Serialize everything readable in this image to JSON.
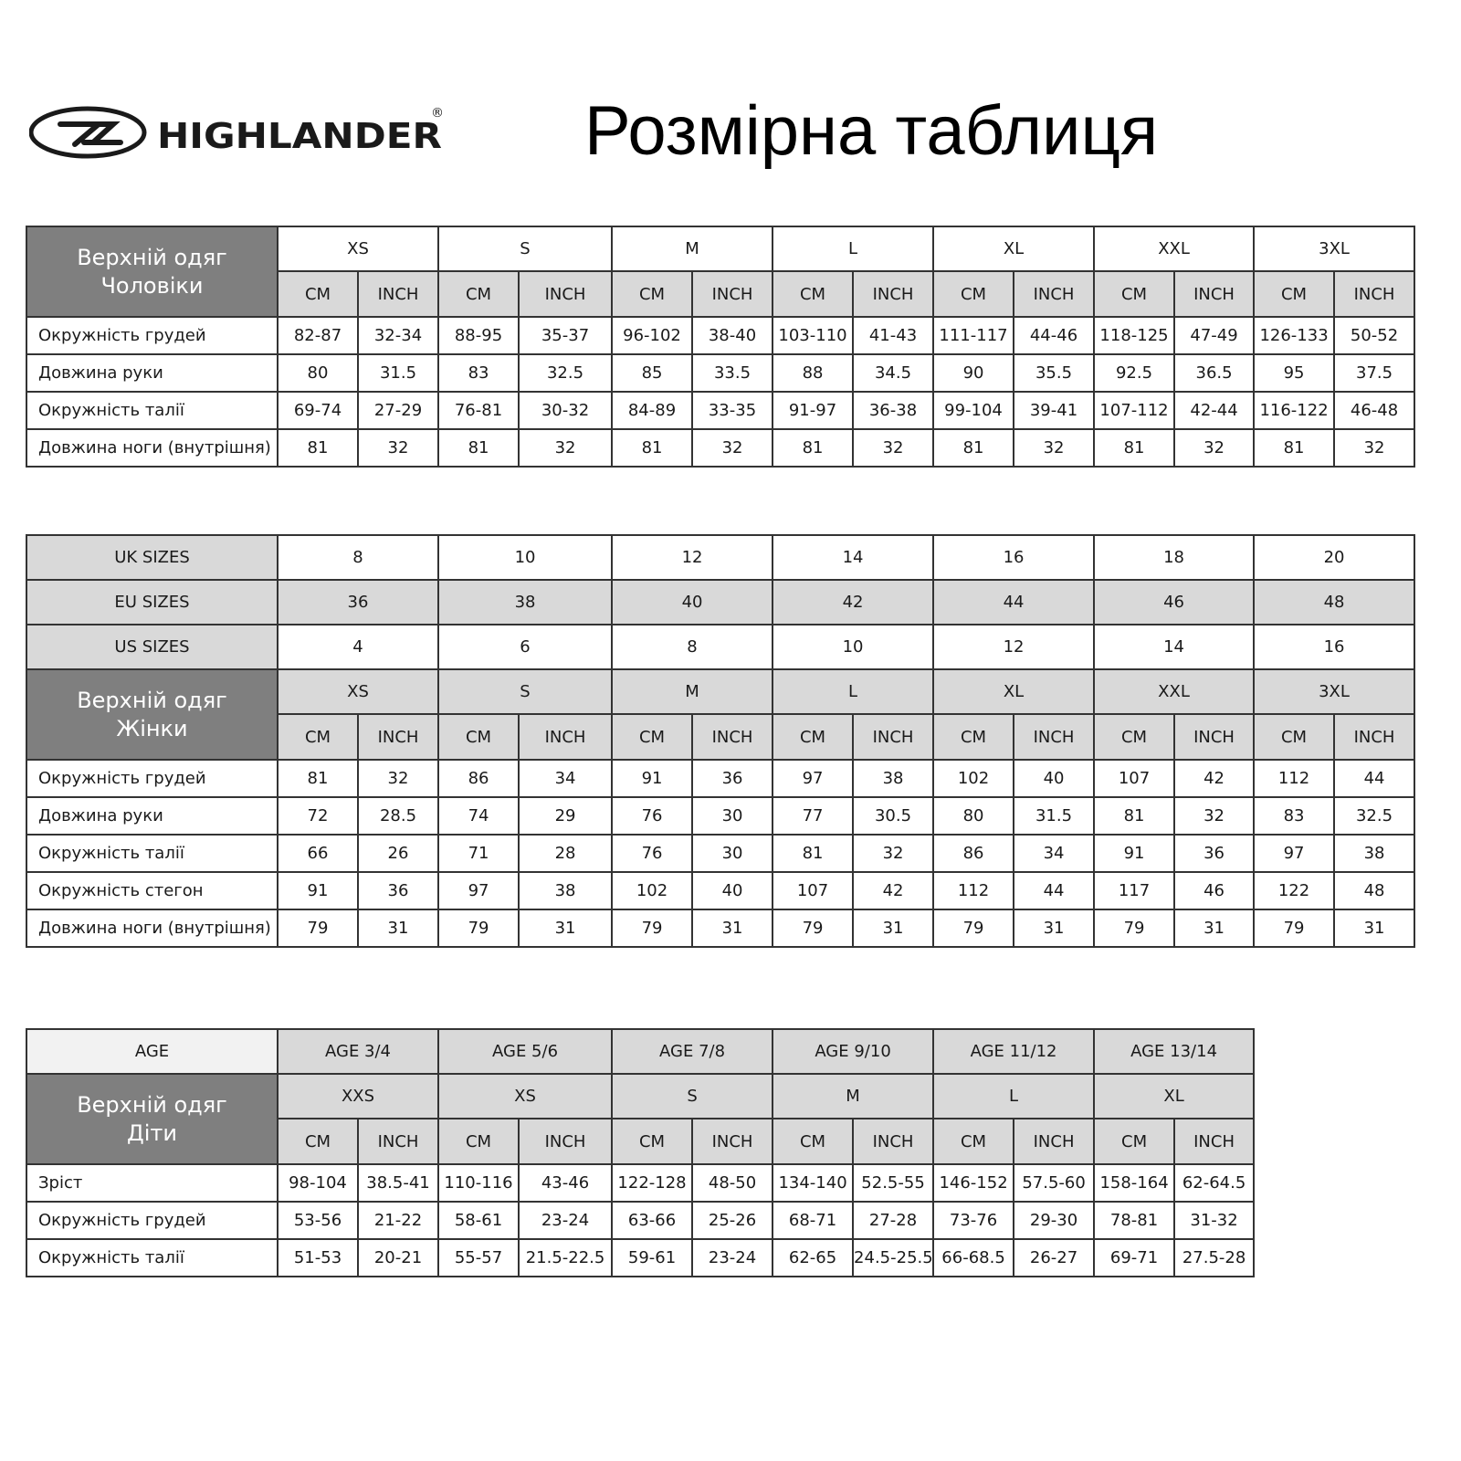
{
  "brand": {
    "name": "HIGHLANDER",
    "registered": "®"
  },
  "title": "Розмірна таблиця",
  "units": [
    "CM",
    "INCH"
  ],
  "men": {
    "header": [
      "Верхній одяг",
      "Чоловіки"
    ],
    "sizes": [
      "XS",
      "S",
      "M",
      "L",
      "XL",
      "XXL",
      "3XL"
    ],
    "rows": [
      {
        "label": "Окружність грудей",
        "values": [
          "82-87",
          "32-34",
          "88-95",
          "35-37",
          "96-102",
          "38-40",
          "103-110",
          "41-43",
          "111-117",
          "44-46",
          "118-125",
          "47-49",
          "126-133",
          "50-52"
        ]
      },
      {
        "label": "Довжина руки",
        "values": [
          "80",
          "31.5",
          "83",
          "32.5",
          "85",
          "33.5",
          "88",
          "34.5",
          "90",
          "35.5",
          "92.5",
          "36.5",
          "95",
          "37.5"
        ]
      },
      {
        "label": "Окружність талії",
        "values": [
          "69-74",
          "27-29",
          "76-81",
          "30-32",
          "84-89",
          "33-35",
          "91-97",
          "36-38",
          "99-104",
          "39-41",
          "107-112",
          "42-44",
          "116-122",
          "46-48"
        ]
      },
      {
        "label": "Довжина ноги (внутрішня)",
        "values": [
          "81",
          "32",
          "81",
          "32",
          "81",
          "32",
          "81",
          "32",
          "81",
          "32",
          "81",
          "32",
          "81",
          "32"
        ]
      }
    ]
  },
  "women": {
    "conversions": [
      {
        "label": "UK SIZES",
        "values": [
          "8",
          "10",
          "12",
          "14",
          "16",
          "18",
          "20"
        ]
      },
      {
        "label": "EU SIZES",
        "values": [
          "36",
          "38",
          "40",
          "42",
          "44",
          "46",
          "48"
        ]
      },
      {
        "label": "US SIZES",
        "values": [
          "4",
          "6",
          "8",
          "10",
          "12",
          "14",
          "16"
        ]
      }
    ],
    "header": [
      "Верхній одяг",
      "Жінки"
    ],
    "sizes": [
      "XS",
      "S",
      "M",
      "L",
      "XL",
      "XXL",
      "3XL"
    ],
    "rows": [
      {
        "label": "Окружність грудей",
        "values": [
          "81",
          "32",
          "86",
          "34",
          "91",
          "36",
          "97",
          "38",
          "102",
          "40",
          "107",
          "42",
          "112",
          "44"
        ]
      },
      {
        "label": "Довжина руки",
        "values": [
          "72",
          "28.5",
          "74",
          "29",
          "76",
          "30",
          "77",
          "30.5",
          "80",
          "31.5",
          "81",
          "32",
          "83",
          "32.5"
        ]
      },
      {
        "label": "Окружність талії",
        "values": [
          "66",
          "26",
          "71",
          "28",
          "76",
          "30",
          "81",
          "32",
          "86",
          "34",
          "91",
          "36",
          "97",
          "38"
        ]
      },
      {
        "label": "Окружність стегон",
        "values": [
          "91",
          "36",
          "97",
          "38",
          "102",
          "40",
          "107",
          "42",
          "112",
          "44",
          "117",
          "46",
          "122",
          "48"
        ]
      },
      {
        "label": "Довжина ноги (внутрішня)",
        "values": [
          "79",
          "31",
          "79",
          "31",
          "79",
          "31",
          "79",
          "31",
          "79",
          "31",
          "79",
          "31",
          "79",
          "31"
        ]
      }
    ]
  },
  "kids": {
    "age_label": "AGE",
    "ages": [
      "AGE 3/4",
      "AGE 5/6",
      "AGE 7/8",
      "AGE 9/10",
      "AGE 11/12",
      "AGE 13/14"
    ],
    "header": [
      "Верхній одяг",
      "Діти"
    ],
    "sizes": [
      "XXS",
      "XS",
      "S",
      "M",
      "L",
      "XL"
    ],
    "rows": [
      {
        "label": "Зріст",
        "values": [
          "98-104",
          "38.5-41",
          "110-116",
          "43-46",
          "122-128",
          "48-50",
          "134-140",
          "52.5-55",
          "146-152",
          "57.5-60",
          "158-164",
          "62-64.5"
        ]
      },
      {
        "label": "Окружність грудей",
        "values": [
          "53-56",
          "21-22",
          "58-61",
          "23-24",
          "63-66",
          "25-26",
          "68-71",
          "27-28",
          "73-76",
          "29-30",
          "78-81",
          "31-32"
        ]
      },
      {
        "label": "Окружність талії",
        "values": [
          "51-53",
          "20-21",
          "55-57",
          "21.5-22.5",
          "59-61",
          "23-24",
          "62-65",
          "24.5-25.5",
          "66-68.5",
          "26-27",
          "69-71",
          "27.5-28"
        ]
      }
    ]
  }
}
